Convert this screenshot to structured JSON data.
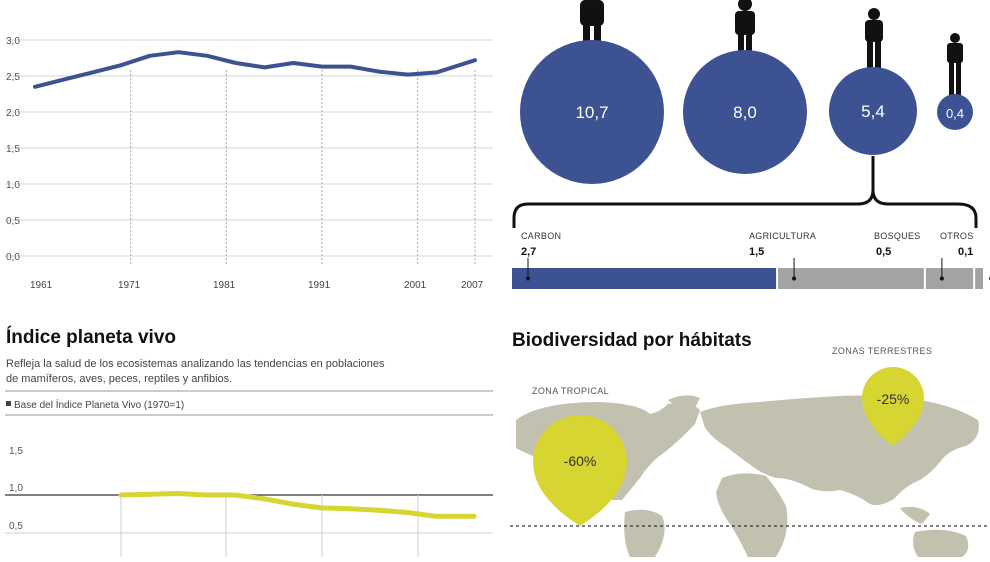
{
  "colors": {
    "blue": "#3d5292",
    "gray_bar": "#a3a3a3",
    "lime": "#d6d532",
    "map": "#c2c0ae",
    "grid": "#d4d4d4"
  },
  "footprint_chart": {
    "chart_data": {
      "type": "line",
      "x": [
        1961,
        1964,
        1967,
        1970,
        1973,
        1976,
        1979,
        1982,
        1985,
        1988,
        1991,
        1994,
        1997,
        2000,
        2003,
        2007
      ],
      "values": [
        2.35,
        2.45,
        2.55,
        2.65,
        2.78,
        2.83,
        2.78,
        2.68,
        2.62,
        2.68,
        2.63,
        2.63,
        2.56,
        2.52,
        2.55,
        2.72
      ],
      "y_ticks": [
        "3,0",
        "2,5",
        "2,0",
        "1,5",
        "1,0",
        "0,5",
        "0,0"
      ],
      "x_ticks": [
        "1961",
        "1971",
        "1981",
        "1991",
        "2001",
        "2007"
      ],
      "ylim": [
        0,
        3
      ],
      "color": "#3d5292"
    }
  },
  "breakdown": {
    "bubbles": [
      {
        "value_label": "10,7",
        "value": 10.7
      },
      {
        "value_label": "8,0",
        "value": 8.0
      },
      {
        "value_label": "5,4",
        "value": 5.4
      },
      {
        "value_label": "0,4",
        "value": 0.4
      }
    ],
    "bar": {
      "chart_data": {
        "type": "bar",
        "categories": [
          "CARBON",
          "AGRICULTURA",
          "BOSQUES",
          "OTROS"
        ],
        "values": [
          2.7,
          1.5,
          0.5,
          0.1
        ],
        "value_labels": [
          "2,7",
          "1,5",
          "0,5",
          "0,1"
        ],
        "colors": [
          "#3d5292",
          "#a3a3a3",
          "#a3a3a3",
          "#a3a3a3"
        ]
      }
    }
  },
  "planeta_vivo": {
    "title": "Índice planeta vivo",
    "description_line1": "Refleja la salud de los ecosistemas analizando las tendencias en poblaciones",
    "description_line2": "de mamíferos, aves, peces, reptiles y anfibios.",
    "legend": "Base del Índice Planeta Vivo (1970=1)",
    "chart_data": {
      "type": "line",
      "x": [
        1970,
        1973,
        1976,
        1979,
        1982,
        1985,
        1988,
        1991,
        1994,
        1997,
        2000,
        2003,
        2006,
        2007
      ],
      "values": [
        1.0,
        1.01,
        1.02,
        1.0,
        1.0,
        0.95,
        0.88,
        0.83,
        0.82,
        0.8,
        0.77,
        0.72,
        0.72,
        0.72
      ],
      "y_ticks": [
        "1,5",
        "1,0",
        "0,5"
      ],
      "ylim": [
        0.5,
        1.5
      ],
      "color": "#d6d532"
    }
  },
  "habitats": {
    "title": "Biodiversidad por hábitats",
    "zones": [
      {
        "label": "ZONA TROPICAL",
        "value": "-60%"
      },
      {
        "label": "ZONAS TERRESTRES",
        "value": "-25%"
      }
    ]
  }
}
